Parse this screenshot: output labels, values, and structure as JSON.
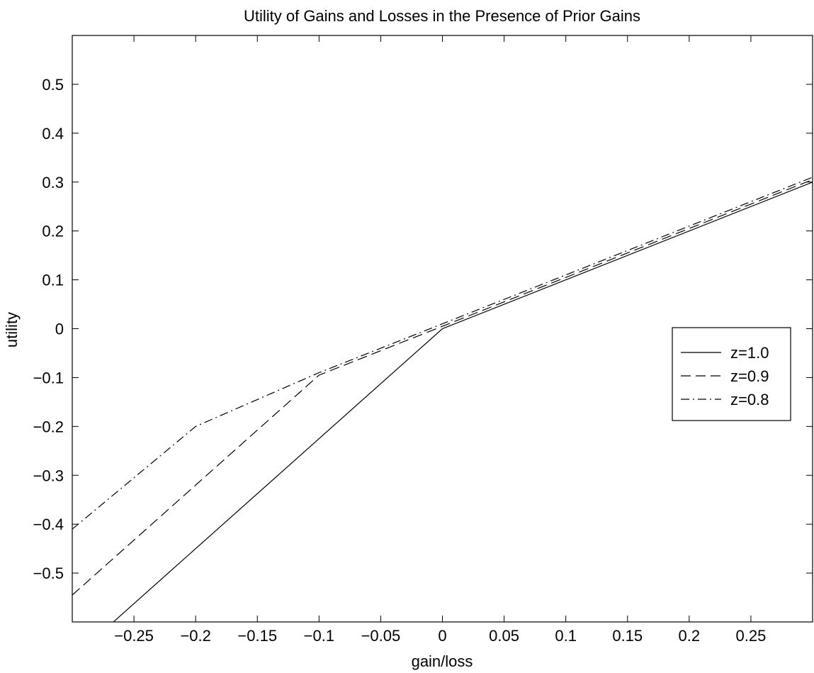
{
  "chart_data": {
    "type": "line",
    "title": "Utility of Gains and Losses in the Presence of Prior Gains",
    "xlabel": "gain/loss",
    "ylabel": "utility",
    "xlim": [
      -0.3,
      0.3
    ],
    "ylim": [
      -0.6,
      0.6
    ],
    "xticks": [
      -0.25,
      -0.2,
      -0.15,
      -0.1,
      -0.05,
      0,
      0.05,
      0.1,
      0.15,
      0.2,
      0.25
    ],
    "xtick_labels": [
      "−0.25",
      "−0.2",
      "−0.15",
      "−0.1",
      "−0.05",
      "0",
      "0.05",
      "0.1",
      "0.15",
      "0.2",
      "0.25"
    ],
    "yticks": [
      -0.5,
      -0.4,
      -0.3,
      -0.2,
      -0.1,
      0,
      0.1,
      0.2,
      0.3,
      0.4,
      0.5
    ],
    "ytick_labels": [
      "−0.5",
      "−0.4",
      "−0.3",
      "−0.2",
      "−0.1",
      "0",
      "0.1",
      "0.2",
      "0.3",
      "0.4",
      "0.5"
    ],
    "grid": false,
    "legend_position": "right",
    "series": [
      {
        "name": "z=1.0",
        "style": "solid",
        "color": "#000000",
        "points": [
          [
            -0.3,
            -0.675
          ],
          [
            0,
            0
          ],
          [
            0.3,
            0.3
          ]
        ]
      },
      {
        "name": "z=0.9",
        "style": "dashed",
        "color": "#000000",
        "points": [
          [
            -0.3,
            -0.545
          ],
          [
            -0.1,
            -0.095
          ],
          [
            0,
            0.005
          ],
          [
            0.3,
            0.305
          ]
        ]
      },
      {
        "name": "z=0.8",
        "style": "dashdot",
        "color": "#000000",
        "points": [
          [
            -0.3,
            -0.41
          ],
          [
            -0.2,
            -0.2
          ],
          [
            -0.1,
            -0.09
          ],
          [
            0,
            0.01
          ],
          [
            0.3,
            0.31
          ]
        ]
      }
    ]
  }
}
